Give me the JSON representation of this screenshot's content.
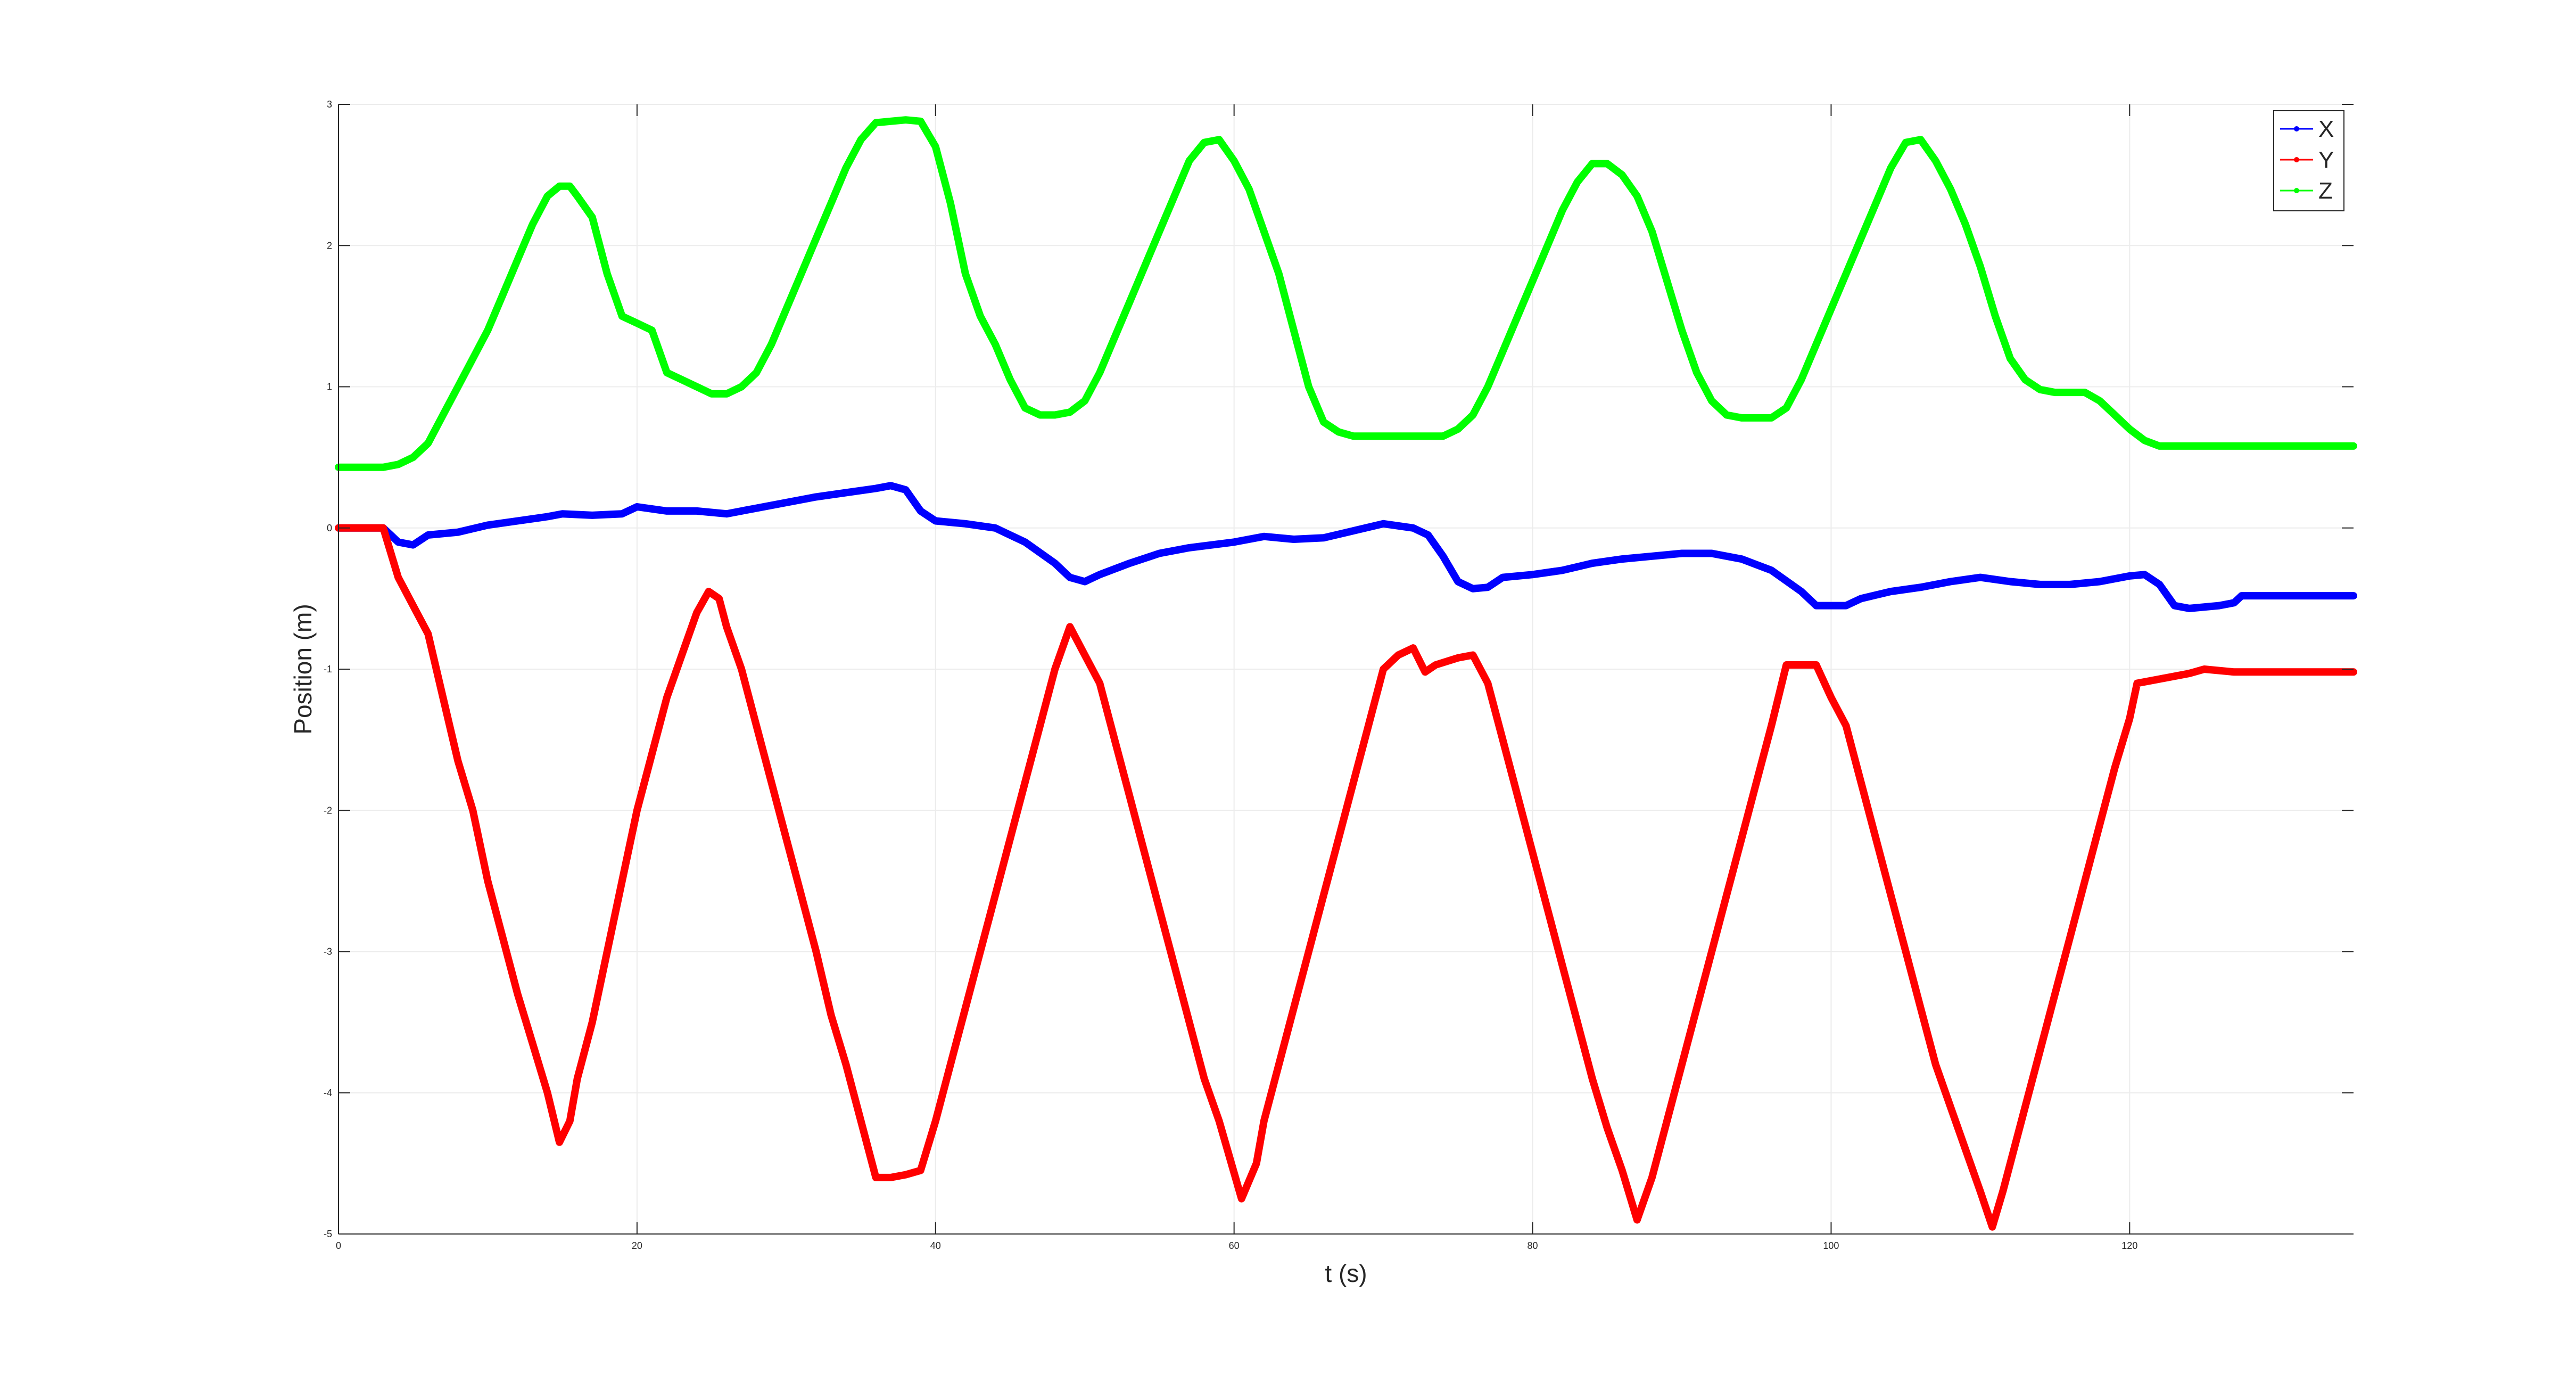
{
  "chart_data": {
    "type": "line",
    "xlabel": "t (s)",
    "ylabel": "Position (m)",
    "xlim": [
      0,
      135
    ],
    "ylim": [
      -5,
      3
    ],
    "xticks": [
      0,
      20,
      40,
      60,
      80,
      100,
      120
    ],
    "yticks": [
      -5,
      -4,
      -3,
      -2,
      -1,
      0,
      1,
      2,
      3
    ],
    "grid": true,
    "legend_position": "top-right",
    "series": [
      {
        "name": "X",
        "color": "#0000ff",
        "points": [
          [
            0,
            0
          ],
          [
            3,
            0
          ],
          [
            3.5,
            -0.05
          ],
          [
            4,
            -0.1
          ],
          [
            5,
            -0.12
          ],
          [
            6,
            -0.05
          ],
          [
            8,
            -0.03
          ],
          [
            10,
            0.02
          ],
          [
            12,
            0.05
          ],
          [
            14,
            0.08
          ],
          [
            15,
            0.1
          ],
          [
            17,
            0.09
          ],
          [
            19,
            0.1
          ],
          [
            20,
            0.15
          ],
          [
            22,
            0.12
          ],
          [
            24,
            0.12
          ],
          [
            26,
            0.1
          ],
          [
            28,
            0.14
          ],
          [
            30,
            0.18
          ],
          [
            32,
            0.22
          ],
          [
            34,
            0.25
          ],
          [
            36,
            0.28
          ],
          [
            37,
            0.3
          ],
          [
            38,
            0.27
          ],
          [
            39,
            0.12
          ],
          [
            40,
            0.05
          ],
          [
            42,
            0.03
          ],
          [
            44,
            0.0
          ],
          [
            46,
            -0.1
          ],
          [
            48,
            -0.25
          ],
          [
            49,
            -0.35
          ],
          [
            50,
            -0.38
          ],
          [
            51,
            -0.33
          ],
          [
            53,
            -0.25
          ],
          [
            55,
            -0.18
          ],
          [
            57,
            -0.14
          ],
          [
            60,
            -0.1
          ],
          [
            62,
            -0.06
          ],
          [
            64,
            -0.08
          ],
          [
            66,
            -0.07
          ],
          [
            68,
            -0.02
          ],
          [
            70,
            0.03
          ],
          [
            72,
            0.0
          ],
          [
            73,
            -0.05
          ],
          [
            74,
            -0.2
          ],
          [
            75,
            -0.38
          ],
          [
            76,
            -0.43
          ],
          [
            77,
            -0.42
          ],
          [
            78,
            -0.35
          ],
          [
            80,
            -0.33
          ],
          [
            82,
            -0.3
          ],
          [
            84,
            -0.25
          ],
          [
            86,
            -0.22
          ],
          [
            88,
            -0.2
          ],
          [
            90,
            -0.18
          ],
          [
            92,
            -0.18
          ],
          [
            94,
            -0.22
          ],
          [
            96,
            -0.3
          ],
          [
            98,
            -0.45
          ],
          [
            99,
            -0.55
          ],
          [
            100,
            -0.55
          ],
          [
            101,
            -0.55
          ],
          [
            102,
            -0.5
          ],
          [
            104,
            -0.45
          ],
          [
            106,
            -0.42
          ],
          [
            108,
            -0.38
          ],
          [
            110,
            -0.35
          ],
          [
            112,
            -0.38
          ],
          [
            114,
            -0.4
          ],
          [
            116,
            -0.4
          ],
          [
            118,
            -0.38
          ],
          [
            120,
            -0.34
          ],
          [
            121,
            -0.33
          ],
          [
            122,
            -0.4
          ],
          [
            123,
            -0.55
          ],
          [
            124,
            -0.57
          ],
          [
            126,
            -0.55
          ],
          [
            127,
            -0.53
          ],
          [
            127.5,
            -0.48
          ],
          [
            130,
            -0.48
          ],
          [
            135,
            -0.48
          ]
        ]
      },
      {
        "name": "Y",
        "color": "#ff0000",
        "points": [
          [
            0,
            0
          ],
          [
            3,
            0
          ],
          [
            4,
            -0.35
          ],
          [
            5,
            -0.55
          ],
          [
            6,
            -0.75
          ],
          [
            7,
            -1.2
          ],
          [
            8,
            -1.65
          ],
          [
            9,
            -2.0
          ],
          [
            10,
            -2.5
          ],
          [
            11,
            -2.9
          ],
          [
            12,
            -3.3
          ],
          [
            13,
            -3.65
          ],
          [
            14,
            -4.0
          ],
          [
            14.8,
            -4.35
          ],
          [
            15.5,
            -4.2
          ],
          [
            16,
            -3.9
          ],
          [
            17,
            -3.5
          ],
          [
            18,
            -3.0
          ],
          [
            19,
            -2.5
          ],
          [
            20,
            -2.0
          ],
          [
            21,
            -1.6
          ],
          [
            22,
            -1.2
          ],
          [
            23,
            -0.9
          ],
          [
            24,
            -0.6
          ],
          [
            24.8,
            -0.45
          ],
          [
            25.5,
            -0.5
          ],
          [
            26,
            -0.7
          ],
          [
            27,
            -1.0
          ],
          [
            28,
            -1.4
          ],
          [
            29,
            -1.8
          ],
          [
            30,
            -2.2
          ],
          [
            31,
            -2.6
          ],
          [
            32,
            -3.0
          ],
          [
            33,
            -3.45
          ],
          [
            34,
            -3.8
          ],
          [
            35,
            -4.2
          ],
          [
            36,
            -4.6
          ],
          [
            37,
            -4.6
          ],
          [
            38,
            -4.58
          ],
          [
            39,
            -4.55
          ],
          [
            40,
            -4.2
          ],
          [
            41,
            -3.8
          ],
          [
            42,
            -3.4
          ],
          [
            43,
            -3.0
          ],
          [
            44,
            -2.6
          ],
          [
            45,
            -2.2
          ],
          [
            46,
            -1.8
          ],
          [
            47,
            -1.4
          ],
          [
            48,
            -1.0
          ],
          [
            49,
            -0.7
          ],
          [
            50,
            -0.9
          ],
          [
            51,
            -1.1
          ],
          [
            52,
            -1.5
          ],
          [
            53,
            -1.9
          ],
          [
            54,
            -2.3
          ],
          [
            55,
            -2.7
          ],
          [
            56,
            -3.1
          ],
          [
            57,
            -3.5
          ],
          [
            58,
            -3.9
          ],
          [
            59,
            -4.2
          ],
          [
            60.5,
            -4.75
          ],
          [
            61.5,
            -4.5
          ],
          [
            62,
            -4.2
          ],
          [
            63,
            -3.8
          ],
          [
            64,
            -3.4
          ],
          [
            65,
            -3.0
          ],
          [
            66,
            -2.6
          ],
          [
            67,
            -2.2
          ],
          [
            68,
            -1.8
          ],
          [
            69,
            -1.4
          ],
          [
            70,
            -1.0
          ],
          [
            71,
            -0.9
          ],
          [
            72,
            -0.85
          ],
          [
            72.8,
            -1.02
          ],
          [
            73.5,
            -0.97
          ],
          [
            75,
            -0.92
          ],
          [
            76,
            -0.9
          ],
          [
            77,
            -1.1
          ],
          [
            78,
            -1.5
          ],
          [
            79,
            -1.9
          ],
          [
            80,
            -2.3
          ],
          [
            81,
            -2.7
          ],
          [
            82,
            -3.1
          ],
          [
            83,
            -3.5
          ],
          [
            84,
            -3.9
          ],
          [
            85,
            -4.25
          ],
          [
            86,
            -4.55
          ],
          [
            87,
            -4.9
          ],
          [
            88,
            -4.6
          ],
          [
            89,
            -4.2
          ],
          [
            90,
            -3.8
          ],
          [
            91,
            -3.4
          ],
          [
            92,
            -3.0
          ],
          [
            93,
            -2.6
          ],
          [
            94,
            -2.2
          ],
          [
            95,
            -1.8
          ],
          [
            96,
            -1.4
          ],
          [
            97,
            -0.97
          ],
          [
            99,
            -0.97
          ],
          [
            100,
            -1.2
          ],
          [
            101,
            -1.4
          ],
          [
            102,
            -1.8
          ],
          [
            103,
            -2.2
          ],
          [
            104,
            -2.6
          ],
          [
            105,
            -3.0
          ],
          [
            106,
            -3.4
          ],
          [
            107,
            -3.8
          ],
          [
            108,
            -4.1
          ],
          [
            109,
            -4.4
          ],
          [
            110,
            -4.7
          ],
          [
            110.8,
            -4.95
          ],
          [
            111.5,
            -4.7
          ],
          [
            112,
            -4.5
          ],
          [
            113,
            -4.1
          ],
          [
            114,
            -3.7
          ],
          [
            115,
            -3.3
          ],
          [
            116,
            -2.9
          ],
          [
            117,
            -2.5
          ],
          [
            118,
            -2.1
          ],
          [
            119,
            -1.7
          ],
          [
            120,
            -1.35
          ],
          [
            120.5,
            -1.1
          ],
          [
            122,
            -1.07
          ],
          [
            124,
            -1.03
          ],
          [
            125,
            -1.0
          ],
          [
            127,
            -1.02
          ],
          [
            130,
            -1.02
          ],
          [
            135,
            -1.02
          ]
        ]
      },
      {
        "name": "Z",
        "color": "#00ff00",
        "points": [
          [
            0,
            0.43
          ],
          [
            3,
            0.43
          ],
          [
            4,
            0.45
          ],
          [
            5,
            0.5
          ],
          [
            6,
            0.6
          ],
          [
            7,
            0.8
          ],
          [
            8,
            1.0
          ],
          [
            9,
            1.2
          ],
          [
            10,
            1.4
          ],
          [
            11,
            1.65
          ],
          [
            12,
            1.9
          ],
          [
            13,
            2.15
          ],
          [
            14,
            2.35
          ],
          [
            14.8,
            2.42
          ],
          [
            15.5,
            2.42
          ],
          [
            16,
            2.35
          ],
          [
            17,
            2.2
          ],
          [
            18,
            1.8
          ],
          [
            19,
            1.5
          ],
          [
            20,
            1.45
          ],
          [
            21,
            1.4
          ],
          [
            22,
            1.1
          ],
          [
            24,
            1.0
          ],
          [
            25,
            0.95
          ],
          [
            26,
            0.95
          ],
          [
            27,
            1.0
          ],
          [
            28,
            1.1
          ],
          [
            29,
            1.3
          ],
          [
            30,
            1.55
          ],
          [
            31,
            1.8
          ],
          [
            32,
            2.05
          ],
          [
            33,
            2.3
          ],
          [
            34,
            2.55
          ],
          [
            35,
            2.75
          ],
          [
            36,
            2.87
          ],
          [
            37,
            2.88
          ],
          [
            38,
            2.89
          ],
          [
            39,
            2.88
          ],
          [
            40,
            2.7
          ],
          [
            41,
            2.3
          ],
          [
            42,
            1.8
          ],
          [
            43,
            1.5
          ],
          [
            44,
            1.3
          ],
          [
            45,
            1.05
          ],
          [
            46,
            0.85
          ],
          [
            47,
            0.8
          ],
          [
            48,
            0.8
          ],
          [
            49,
            0.82
          ],
          [
            50,
            0.9
          ],
          [
            51,
            1.1
          ],
          [
            52,
            1.35
          ],
          [
            53,
            1.6
          ],
          [
            54,
            1.85
          ],
          [
            55,
            2.1
          ],
          [
            56,
            2.35
          ],
          [
            57,
            2.6
          ],
          [
            58,
            2.73
          ],
          [
            59,
            2.75
          ],
          [
            60,
            2.6
          ],
          [
            61,
            2.4
          ],
          [
            62,
            2.1
          ],
          [
            63,
            1.8
          ],
          [
            64,
            1.4
          ],
          [
            65,
            1.0
          ],
          [
            66,
            0.75
          ],
          [
            67,
            0.68
          ],
          [
            68,
            0.65
          ],
          [
            70,
            0.65
          ],
          [
            72,
            0.65
          ],
          [
            74,
            0.65
          ],
          [
            75,
            0.7
          ],
          [
            76,
            0.8
          ],
          [
            77,
            1.0
          ],
          [
            78,
            1.25
          ],
          [
            79,
            1.5
          ],
          [
            80,
            1.75
          ],
          [
            81,
            2.0
          ],
          [
            82,
            2.25
          ],
          [
            83,
            2.45
          ],
          [
            84,
            2.58
          ],
          [
            85,
            2.58
          ],
          [
            86,
            2.5
          ],
          [
            87,
            2.35
          ],
          [
            88,
            2.1
          ],
          [
            89,
            1.75
          ],
          [
            90,
            1.4
          ],
          [
            91,
            1.1
          ],
          [
            92,
            0.9
          ],
          [
            93,
            0.8
          ],
          [
            94,
            0.78
          ],
          [
            96,
            0.78
          ],
          [
            97,
            0.85
          ],
          [
            98,
            1.05
          ],
          [
            99,
            1.3
          ],
          [
            100,
            1.55
          ],
          [
            101,
            1.8
          ],
          [
            102,
            2.05
          ],
          [
            103,
            2.3
          ],
          [
            104,
            2.55
          ],
          [
            105,
            2.73
          ],
          [
            106,
            2.75
          ],
          [
            107,
            2.6
          ],
          [
            108,
            2.4
          ],
          [
            109,
            2.15
          ],
          [
            110,
            1.85
          ],
          [
            111,
            1.5
          ],
          [
            112,
            1.2
          ],
          [
            113,
            1.05
          ],
          [
            114,
            0.98
          ],
          [
            115,
            0.96
          ],
          [
            117,
            0.96
          ],
          [
            118,
            0.9
          ],
          [
            119,
            0.8
          ],
          [
            120,
            0.7
          ],
          [
            121,
            0.62
          ],
          [
            122,
            0.58
          ],
          [
            124,
            0.58
          ],
          [
            127,
            0.58
          ],
          [
            130,
            0.58
          ],
          [
            135,
            0.58
          ]
        ]
      }
    ]
  }
}
